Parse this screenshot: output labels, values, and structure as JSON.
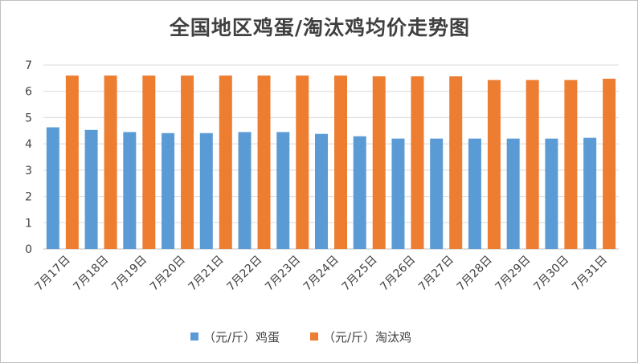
{
  "chart_data": {
    "type": "bar",
    "title": "全国地区鸡蛋/淘汰鸡均价走势图",
    "categories": [
      "7月17日",
      "7月18日",
      "7月19日",
      "7月20日",
      "7月21日",
      "7月22日",
      "7月23日",
      "7月24日",
      "7月25日",
      "7月26日",
      "7月27日",
      "7月28日",
      "7月29日",
      "7月30日",
      "7月31日"
    ],
    "series": [
      {
        "name": "（元/斤）鸡蛋",
        "color": "#5b9bd5",
        "values": [
          4.63,
          4.53,
          4.45,
          4.41,
          4.41,
          4.45,
          4.45,
          4.38,
          4.29,
          4.2,
          4.2,
          4.2,
          4.2,
          4.2,
          4.23
        ]
      },
      {
        "name": "（元/斤）淘汰鸡",
        "color": "#ed7d31",
        "values": [
          6.6,
          6.6,
          6.6,
          6.6,
          6.6,
          6.6,
          6.6,
          6.6,
          6.57,
          6.57,
          6.57,
          6.43,
          6.43,
          6.43,
          6.48
        ]
      }
    ],
    "yticks": [
      "0",
      "1",
      "2",
      "3",
      "4",
      "5",
      "6",
      "7"
    ],
    "ylim": [
      0,
      7
    ],
    "grid": true,
    "legend": "bottom"
  }
}
